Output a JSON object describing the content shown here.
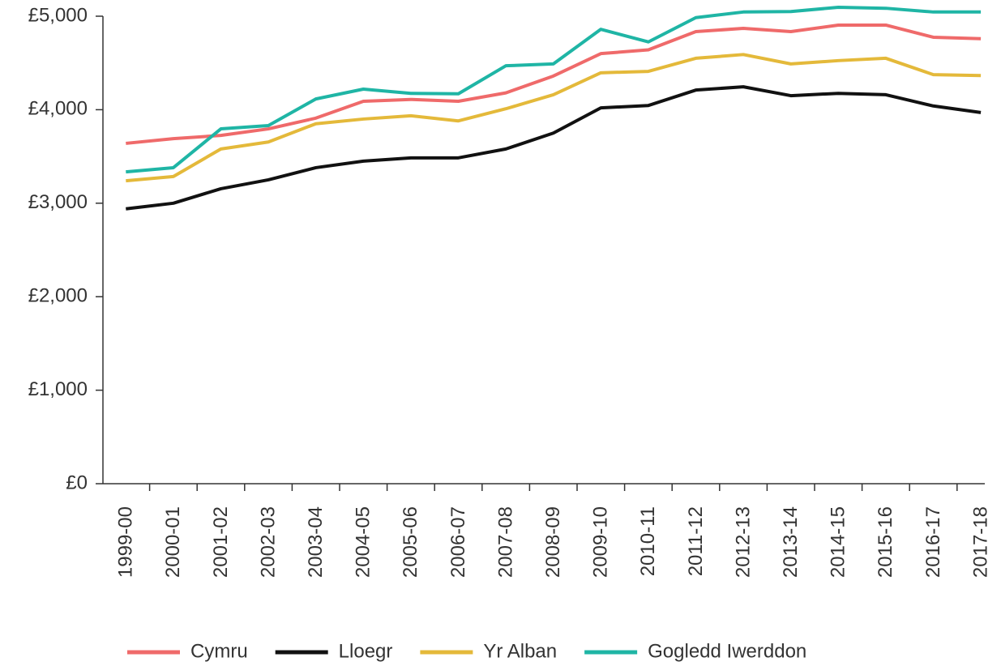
{
  "chart_data": {
    "type": "line",
    "categories": [
      "1999-00",
      "2000-01",
      "2001-02",
      "2002-03",
      "2003-04",
      "2004-05",
      "2005-06",
      "2006-07",
      "2007-08",
      "2008-09",
      "2009-10",
      "2010-11",
      "2011-12",
      "2012-13",
      "2013-14",
      "2014-15",
      "2015-16",
      "2016-17",
      "2017-18"
    ],
    "series": [
      {
        "name": "Cymru",
        "color": "#ef6a6a",
        "values": [
          3640,
          3690,
          3725,
          3795,
          3910,
          4090,
          4110,
          4090,
          4180,
          4360,
          4600,
          4640,
          4835,
          4870,
          4835,
          4905,
          4905,
          4775,
          4760
        ]
      },
      {
        "name": "Lloegr",
        "color": "#111111",
        "values": [
          2940,
          3000,
          3155,
          3250,
          3380,
          3450,
          3485,
          3485,
          3580,
          3750,
          4020,
          4045,
          4210,
          4245,
          4150,
          4175,
          4160,
          4040,
          3970
        ]
      },
      {
        "name": "Yr Alban",
        "color": "#e4b93a",
        "values": [
          3240,
          3285,
          3580,
          3655,
          3850,
          3900,
          3935,
          3880,
          4010,
          4160,
          4395,
          4410,
          4550,
          4590,
          4490,
          4525,
          4550,
          4375,
          4365
        ]
      },
      {
        "name": "Gogledd Iwerddon",
        "color": "#1fb5a5",
        "values": [
          3335,
          3380,
          3795,
          3830,
          4115,
          4220,
          4175,
          4170,
          4470,
          4490,
          4860,
          4725,
          4985,
          5045,
          5050,
          5095,
          5085,
          5045,
          5045
        ]
      }
    ],
    "ylim": [
      0,
      5000
    ],
    "yticks": [
      {
        "value": 0,
        "label": "£0"
      },
      {
        "value": 1000,
        "label": "£1,000"
      },
      {
        "value": 2000,
        "label": "£2,000"
      },
      {
        "value": 3000,
        "label": "£3,000"
      },
      {
        "value": 4000,
        "label": "£4,000"
      },
      {
        "value": 5000,
        "label": "£5,000"
      }
    ],
    "legend": "bottom"
  }
}
